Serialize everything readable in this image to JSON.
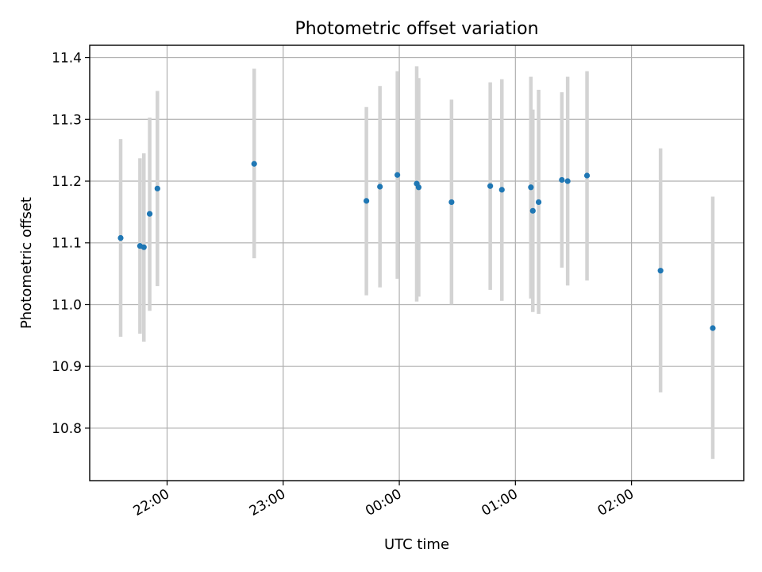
{
  "chart_data": {
    "type": "scatter",
    "title": "Photometric offset variation",
    "xlabel": "UTC time",
    "ylabel": "Photometric offset",
    "x_unit": "UTC time (24h clock, continuing past midnight)",
    "xlim": [
      "21:20",
      "02:58"
    ],
    "ylim": [
      10.715,
      11.42
    ],
    "x_ticks": [
      "22:00",
      "23:00",
      "00:00",
      "01:00",
      "02:00"
    ],
    "y_ticks": [
      10.8,
      10.9,
      11.0,
      11.1,
      11.2,
      11.3,
      11.4
    ],
    "y_tick_labels": [
      "10.8",
      "10.9",
      "11.0",
      "11.1",
      "11.2",
      "11.3",
      "11.4"
    ],
    "grid": true,
    "colors": {
      "points": "#1f77b4",
      "error_bars": "#d3d3d3",
      "grid": "#b0b0b0"
    },
    "series": [
      {
        "points": [
          {
            "x": "21:36",
            "y": 11.108,
            "ylow": 10.948,
            "yhigh": 11.268
          },
          {
            "x": "21:46",
            "y": 11.095,
            "ylow": 10.953,
            "yhigh": 11.237
          },
          {
            "x": "21:48",
            "y": 11.093,
            "ylow": 10.94,
            "yhigh": 11.245
          },
          {
            "x": "21:51",
            "y": 11.147,
            "ylow": 10.99,
            "yhigh": 11.303
          },
          {
            "x": "21:55",
            "y": 11.188,
            "ylow": 11.03,
            "yhigh": 11.346
          },
          {
            "x": "22:45",
            "y": 11.228,
            "ylow": 11.075,
            "yhigh": 11.382
          },
          {
            "x": "23:43",
            "y": 11.168,
            "ylow": 11.015,
            "yhigh": 11.32
          },
          {
            "x": "23:50",
            "y": 11.191,
            "ylow": 11.028,
            "yhigh": 11.354
          },
          {
            "x": "23:59",
            "y": 11.21,
            "ylow": 11.042,
            "yhigh": 11.378
          },
          {
            "x": "00:09",
            "y": 11.196,
            "ylow": 11.005,
            "yhigh": 11.386
          },
          {
            "x": "00:10",
            "y": 11.19,
            "ylow": 11.013,
            "yhigh": 11.367
          },
          {
            "x": "00:27",
            "y": 11.166,
            "ylow": 11.0,
            "yhigh": 11.332
          },
          {
            "x": "00:47",
            "y": 11.192,
            "ylow": 11.024,
            "yhigh": 11.36
          },
          {
            "x": "00:53",
            "y": 11.186,
            "ylow": 11.006,
            "yhigh": 11.365
          },
          {
            "x": "01:08",
            "y": 11.19,
            "ylow": 11.01,
            "yhigh": 11.369
          },
          {
            "x": "01:09",
            "y": 11.152,
            "ylow": 10.988,
            "yhigh": 11.316
          },
          {
            "x": "01:12",
            "y": 11.166,
            "ylow": 10.985,
            "yhigh": 11.348
          },
          {
            "x": "01:24",
            "y": 11.202,
            "ylow": 11.06,
            "yhigh": 11.344
          },
          {
            "x": "01:27",
            "y": 11.2,
            "ylow": 11.031,
            "yhigh": 11.369
          },
          {
            "x": "01:37",
            "y": 11.209,
            "ylow": 11.039,
            "yhigh": 11.378
          },
          {
            "x": "02:15",
            "y": 11.055,
            "ylow": 10.858,
            "yhigh": 11.253
          },
          {
            "x": "02:42",
            "y": 10.962,
            "ylow": 10.75,
            "yhigh": 11.175
          }
        ]
      }
    ]
  }
}
